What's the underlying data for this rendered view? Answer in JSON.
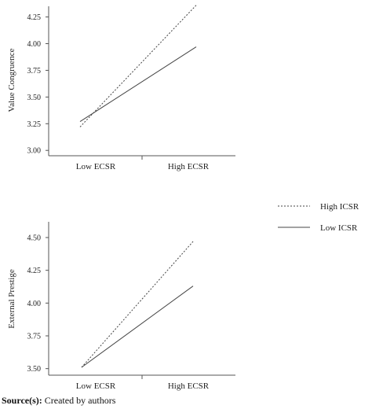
{
  "chart_data": [
    {
      "type": "line",
      "ylabel": "Value Congruence",
      "categories": [
        "Low ECSR",
        "High ECSR"
      ],
      "yticks": [
        "3.00",
        "3.25",
        "3.50",
        "3.75",
        "4.00",
        "4.25"
      ],
      "ylim": [
        2.95,
        4.35
      ],
      "series": [
        {
          "name": "High ICSR",
          "values": [
            3.22,
            4.36
          ],
          "style": "dashed"
        },
        {
          "name": "Low ICSR",
          "values": [
            3.27,
            3.97
          ],
          "style": "solid"
        }
      ]
    },
    {
      "type": "line",
      "ylabel": "External Prestige",
      "categories": [
        "Low ECSR",
        "High ECSR"
      ],
      "yticks": [
        "3.50",
        "3.75",
        "4.00",
        "4.25",
        "4.50"
      ],
      "ylim": [
        3.45,
        4.62
      ],
      "series": [
        {
          "name": "High ICSR",
          "values": [
            3.51,
            4.47
          ],
          "style": "dashed"
        },
        {
          "name": "Low ICSR",
          "values": [
            3.51,
            4.13
          ],
          "style": "solid"
        }
      ]
    }
  ],
  "legend": {
    "placement": "right",
    "items": [
      {
        "label": "High ICSR",
        "style": "dashed"
      },
      {
        "label": "Low ICSR",
        "style": "solid"
      }
    ]
  },
  "source": {
    "label": "Source(s):",
    "text": " Created by authors"
  },
  "colors": {
    "line": "#444444",
    "axis": "#555555"
  }
}
